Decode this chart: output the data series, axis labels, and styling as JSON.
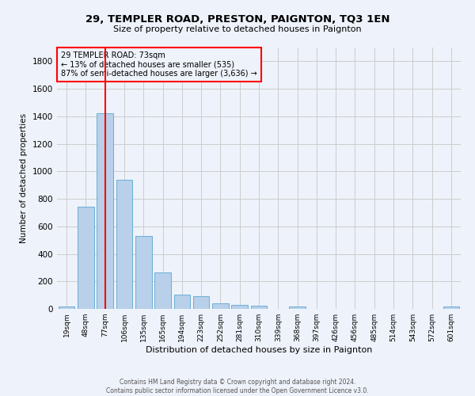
{
  "title": "29, TEMPLER ROAD, PRESTON, PAIGNTON, TQ3 1EN",
  "subtitle": "Size of property relative to detached houses in Paignton",
  "xlabel": "Distribution of detached houses by size in Paignton",
  "ylabel": "Number of detached properties",
  "footer_line1": "Contains HM Land Registry data © Crown copyright and database right 2024.",
  "footer_line2": "Contains public sector information licensed under the Open Government Licence v3.0.",
  "categories": [
    "19sqm",
    "48sqm",
    "77sqm",
    "106sqm",
    "135sqm",
    "165sqm",
    "194sqm",
    "223sqm",
    "252sqm",
    "281sqm",
    "310sqm",
    "339sqm",
    "368sqm",
    "397sqm",
    "426sqm",
    "456sqm",
    "485sqm",
    "514sqm",
    "543sqm",
    "572sqm",
    "601sqm"
  ],
  "values": [
    20,
    740,
    1420,
    940,
    530,
    265,
    105,
    95,
    40,
    28,
    25,
    0,
    15,
    0,
    0,
    0,
    0,
    0,
    0,
    0,
    15
  ],
  "bar_color": "#b8d0ea",
  "bar_edge_color": "#6aaed6",
  "grid_color": "#cccccc",
  "bg_color": "#eef2fa",
  "vline_x_index": 2,
  "vline_color": "red",
  "annotation_line1": "29 TEMPLER ROAD: 73sqm",
  "annotation_line2": "← 13% of detached houses are smaller (535)",
  "annotation_line3": "87% of semi-detached houses are larger (3,636) →",
  "annotation_box_color": "red",
  "ylim": [
    0,
    1900
  ],
  "yticks": [
    0,
    200,
    400,
    600,
    800,
    1000,
    1200,
    1400,
    1600,
    1800
  ]
}
